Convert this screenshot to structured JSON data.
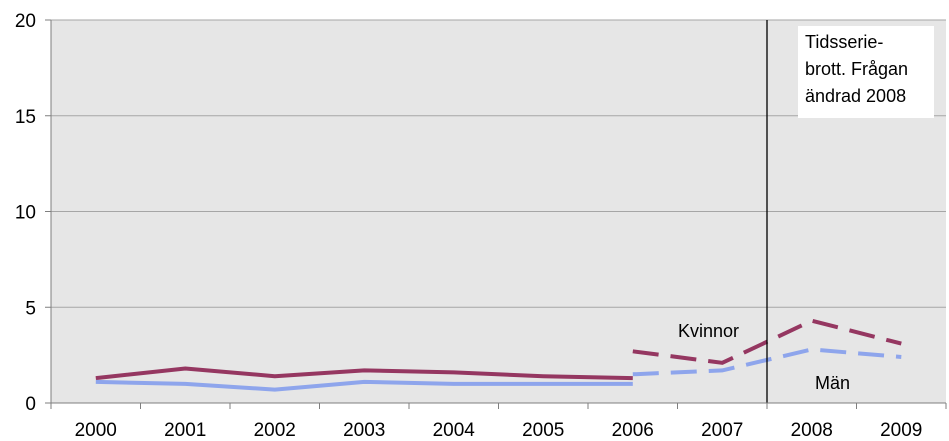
{
  "chart_data": {
    "type": "line",
    "categories": [
      "2000",
      "2001",
      "2002",
      "2003",
      "2004",
      "2005",
      "2006",
      "2007",
      "2008",
      "2009"
    ],
    "ylim": [
      0,
      20
    ],
    "yticks": [
      0,
      5,
      10,
      15,
      20
    ],
    "grid": "horizontal",
    "title": "",
    "xlabel": "",
    "ylabel": "",
    "series": [
      {
        "name": "Kvinnor",
        "color": "#953761",
        "values": [
          1.3,
          1.8,
          1.4,
          1.7,
          1.6,
          1.4,
          1.3,
          null,
          null,
          null
        ],
        "dashed_values": [
          null,
          null,
          null,
          null,
          null,
          null,
          2.7,
          2.1,
          4.3,
          3.1
        ]
      },
      {
        "name": "Män",
        "color": "#8EA5EC",
        "values": [
          1.1,
          1.0,
          0.7,
          1.1,
          1.0,
          1.0,
          1.0,
          null,
          null,
          null
        ],
        "dashed_values": [
          null,
          null,
          null,
          null,
          null,
          null,
          1.5,
          1.7,
          2.8,
          2.4
        ]
      }
    ],
    "annotation": {
      "lines": [
        "Tidsserie-",
        "brott. Frågan",
        "ändrad 2008"
      ]
    }
  },
  "colors": {
    "plot_background": "#E6E6E6",
    "grid": "#A6A6A6",
    "break_line": "#000000"
  }
}
